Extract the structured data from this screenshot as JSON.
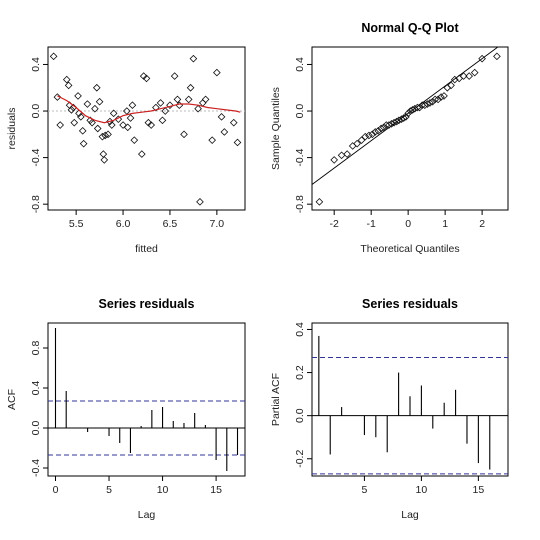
{
  "chart_data": [
    {
      "type": "scatter",
      "title": "",
      "xlabel": "fitted",
      "ylabel": "residuals",
      "xlim": [
        5.2,
        7.3
      ],
      "ylim": [
        -0.85,
        0.55
      ],
      "xticks": [
        "5.5",
        "6.0",
        "6.5",
        "7.0"
      ],
      "yticks": [
        "0.4",
        "0.0",
        "-0.4",
        "-0.8"
      ],
      "zero_line": true,
      "points": [
        [
          5.26,
          0.47
        ],
        [
          5.3,
          0.12
        ],
        [
          5.33,
          -0.12
        ],
        [
          5.4,
          0.27
        ],
        [
          5.42,
          0.22
        ],
        [
          5.43,
          0.05
        ],
        [
          5.45,
          0.01
        ],
        [
          5.47,
          0.03
        ],
        [
          5.48,
          -0.1
        ],
        [
          5.52,
          0.13
        ],
        [
          5.53,
          -0.02
        ],
        [
          5.55,
          -0.05
        ],
        [
          5.57,
          -0.17
        ],
        [
          5.58,
          -0.28
        ],
        [
          5.62,
          0.06
        ],
        [
          5.65,
          -0.08
        ],
        [
          5.67,
          -0.1
        ],
        [
          5.7,
          0.02
        ],
        [
          5.72,
          0.2
        ],
        [
          5.73,
          -0.15
        ],
        [
          5.75,
          0.08
        ],
        [
          5.78,
          -0.22
        ],
        [
          5.79,
          -0.37
        ],
        [
          5.8,
          -0.42
        ],
        [
          5.81,
          -0.21
        ],
        [
          5.84,
          -0.2
        ],
        [
          5.86,
          -0.09
        ],
        [
          5.88,
          -0.12
        ],
        [
          5.9,
          -0.02
        ],
        [
          5.95,
          -0.07
        ],
        [
          6.0,
          -0.12
        ],
        [
          6.04,
          0.0
        ],
        [
          6.05,
          -0.14
        ],
        [
          6.08,
          -0.06
        ],
        [
          6.1,
          0.05
        ],
        [
          6.12,
          -0.25
        ],
        [
          6.2,
          -0.37
        ],
        [
          6.22,
          0.3
        ],
        [
          6.25,
          0.28
        ],
        [
          6.27,
          -0.1
        ],
        [
          6.3,
          -0.12
        ],
        [
          6.35,
          0.03
        ],
        [
          6.4,
          0.07
        ],
        [
          6.42,
          -0.08
        ],
        [
          6.45,
          0.0
        ],
        [
          6.5,
          0.05
        ],
        [
          6.55,
          0.3
        ],
        [
          6.58,
          0.1
        ],
        [
          6.6,
          0.05
        ],
        [
          6.65,
          -0.2
        ],
        [
          6.7,
          0.1
        ],
        [
          6.72,
          0.2
        ],
        [
          6.75,
          0.45
        ],
        [
          6.8,
          0.02
        ],
        [
          6.82,
          -0.78
        ],
        [
          6.85,
          0.07
        ],
        [
          6.88,
          0.1
        ],
        [
          6.95,
          -0.25
        ],
        [
          7.0,
          0.33
        ],
        [
          7.05,
          -0.05
        ],
        [
          7.08,
          -0.18
        ],
        [
          7.18,
          -0.1
        ],
        [
          7.22,
          -0.27
        ]
      ],
      "smooth": [
        [
          5.3,
          0.13
        ],
        [
          5.4,
          0.09
        ],
        [
          5.5,
          0.03
        ],
        [
          5.6,
          -0.04
        ],
        [
          5.7,
          -0.08
        ],
        [
          5.8,
          -0.1
        ],
        [
          5.9,
          -0.08
        ],
        [
          6.0,
          -0.04
        ],
        [
          6.1,
          -0.02
        ],
        [
          6.2,
          -0.01
        ],
        [
          6.3,
          0.0
        ],
        [
          6.4,
          0.02
        ],
        [
          6.5,
          0.04
        ],
        [
          6.6,
          0.06
        ],
        [
          6.7,
          0.06
        ],
        [
          6.8,
          0.05
        ],
        [
          6.9,
          0.03
        ],
        [
          7.0,
          0.02
        ],
        [
          7.1,
          0.01
        ],
        [
          7.2,
          0.0
        ],
        [
          7.25,
          -0.01
        ]
      ]
    },
    {
      "type": "scatter",
      "title": "Normal Q-Q Plot",
      "xlabel": "Theoretical Quantiles",
      "ylabel": "Sample Quantiles",
      "xlim": [
        -2.6,
        2.7
      ],
      "ylim": [
        -0.85,
        0.55
      ],
      "xticks": [
        "-2",
        "-1",
        "0",
        "1",
        "2"
      ],
      "yticks": [
        "0.4",
        "0.0",
        "-0.4",
        "-0.8"
      ],
      "reference_line": {
        "intercept": -0.02,
        "slope": 0.235
      },
      "points": [
        [
          -2.4,
          -0.78
        ],
        [
          -2.0,
          -0.42
        ],
        [
          -1.8,
          -0.38
        ],
        [
          -1.65,
          -0.37
        ],
        [
          -1.5,
          -0.3
        ],
        [
          -1.38,
          -0.28
        ],
        [
          -1.26,
          -0.25
        ],
        [
          -1.16,
          -0.22
        ],
        [
          -1.06,
          -0.21
        ],
        [
          -0.97,
          -0.2
        ],
        [
          -0.89,
          -0.18
        ],
        [
          -0.81,
          -0.17
        ],
        [
          -0.73,
          -0.15
        ],
        [
          -0.66,
          -0.14
        ],
        [
          -0.59,
          -0.12
        ],
        [
          -0.52,
          -0.12
        ],
        [
          -0.45,
          -0.11
        ],
        [
          -0.38,
          -0.1
        ],
        [
          -0.31,
          -0.09
        ],
        [
          -0.25,
          -0.08
        ],
        [
          -0.18,
          -0.07
        ],
        [
          -0.12,
          -0.06
        ],
        [
          -0.06,
          -0.05
        ],
        [
          0.0,
          -0.02
        ],
        [
          0.06,
          0.0
        ],
        [
          0.12,
          0.01
        ],
        [
          0.18,
          0.02
        ],
        [
          0.25,
          0.03
        ],
        [
          0.31,
          0.03
        ],
        [
          0.38,
          0.05
        ],
        [
          0.45,
          0.05
        ],
        [
          0.52,
          0.06
        ],
        [
          0.59,
          0.07
        ],
        [
          0.66,
          0.08
        ],
        [
          0.73,
          0.1
        ],
        [
          0.81,
          0.1
        ],
        [
          0.89,
          0.12
        ],
        [
          0.97,
          0.13
        ],
        [
          1.06,
          0.2
        ],
        [
          1.16,
          0.22
        ],
        [
          1.26,
          0.27
        ],
        [
          1.38,
          0.28
        ],
        [
          1.5,
          0.3
        ],
        [
          1.65,
          0.3
        ],
        [
          1.8,
          0.33
        ],
        [
          2.0,
          0.45
        ],
        [
          2.4,
          0.47
        ]
      ]
    },
    {
      "type": "bar",
      "title": "Series  residuals",
      "xlabel": "Lag",
      "ylabel": "ACF",
      "xlim": [
        -0.7,
        17.7
      ],
      "ylim": [
        -0.48,
        1.05
      ],
      "xticks": [
        "0",
        "5",
        "10",
        "15"
      ],
      "yticks": [
        "0.8",
        "0.4",
        "0.0",
        "-0.4"
      ],
      "confidence_band": 0.27,
      "categories": [
        0,
        1,
        2,
        3,
        4,
        5,
        6,
        7,
        8,
        9,
        10,
        11,
        12,
        13,
        14,
        15,
        16,
        17
      ],
      "values": [
        1.0,
        0.37,
        0.0,
        -0.04,
        0.0,
        -0.08,
        -0.15,
        -0.25,
        0.02,
        0.18,
        0.21,
        0.07,
        0.05,
        0.15,
        0.03,
        -0.32,
        -0.43,
        -0.27
      ]
    },
    {
      "type": "bar",
      "title": "Series  residuals",
      "xlabel": "Lag",
      "ylabel": "Partial ACF",
      "xlim": [
        0.4,
        17.6
      ],
      "ylim": [
        -0.28,
        0.43
      ],
      "xticks": [
        "5",
        "10",
        "15"
      ],
      "yticks": [
        "0.4",
        "0.2",
        "0.0",
        "-0.2"
      ],
      "confidence_band": 0.27,
      "categories": [
        1,
        2,
        3,
        4,
        5,
        6,
        7,
        8,
        9,
        10,
        11,
        12,
        13,
        14,
        15,
        16
      ],
      "values": [
        0.37,
        -0.18,
        0.04,
        0.0,
        -0.09,
        -0.1,
        -0.17,
        0.2,
        0.09,
        0.14,
        -0.06,
        0.06,
        0.12,
        -0.13,
        -0.22,
        -0.25
      ]
    }
  ],
  "colors": {
    "smooth_line": "#cc2222",
    "confidence_band": "#33339a",
    "zero_line": "#bbbbbb",
    "axis": "#000000"
  }
}
